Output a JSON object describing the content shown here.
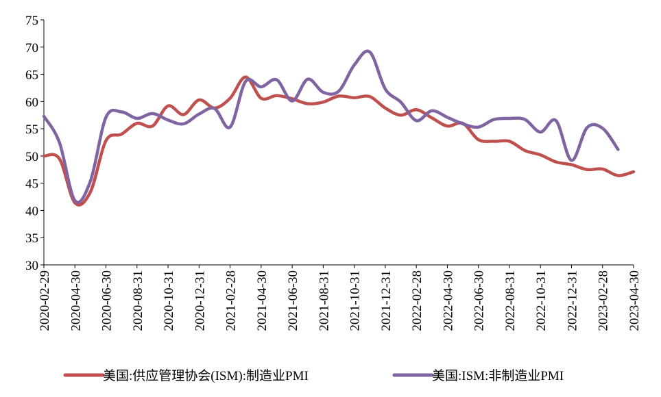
{
  "chart_data": {
    "type": "line",
    "title": "",
    "xlabel": "",
    "ylabel": "",
    "ylim": [
      30,
      75
    ],
    "yticks": [
      30,
      35,
      40,
      45,
      50,
      55,
      60,
      65,
      70,
      75
    ],
    "xtick_labels": [
      "2020-02-29",
      "2020-04-30",
      "2020-06-30",
      "2020-08-31",
      "2020-10-31",
      "2020-12-31",
      "2021-02-28",
      "2021-04-30",
      "2021-06-30",
      "2021-08-31",
      "2021-10-31",
      "2021-12-31",
      "2022-02-28",
      "2022-04-30",
      "2022-06-30",
      "2022-08-31",
      "2022-10-31",
      "2022-12-31",
      "2023-02-28",
      "2023-04-30"
    ],
    "months": [
      "2020-02",
      "2020-03",
      "2020-04",
      "2020-05",
      "2020-06",
      "2020-07",
      "2020-08",
      "2020-09",
      "2020-10",
      "2020-11",
      "2020-12",
      "2021-01",
      "2021-02",
      "2021-03",
      "2021-04",
      "2021-05",
      "2021-06",
      "2021-07",
      "2021-08",
      "2021-09",
      "2021-10",
      "2021-11",
      "2021-12",
      "2022-01",
      "2022-02",
      "2022-03",
      "2022-04",
      "2022-05",
      "2022-06",
      "2022-07",
      "2022-08",
      "2022-09",
      "2022-10",
      "2022-11",
      "2022-12",
      "2023-01",
      "2023-02",
      "2023-03",
      "2023-04"
    ],
    "legend_position": "bottom",
    "series": [
      {
        "name": "美国:供应管理协会(ISM):制造业PMI",
        "color": "#C0504D",
        "values": [
          50.0,
          49.5,
          41.4,
          43.4,
          52.8,
          54.0,
          56.0,
          55.5,
          59.2,
          57.6,
          60.3,
          58.8,
          60.6,
          64.5,
          60.6,
          61.1,
          60.5,
          59.6,
          59.9,
          61.0,
          60.7,
          60.9,
          58.8,
          57.5,
          58.5,
          57.0,
          55.5,
          56.0,
          53.0,
          52.7,
          52.7,
          51.0,
          50.2,
          48.9,
          48.4,
          47.5,
          47.6,
          46.4,
          47.1
        ]
      },
      {
        "name": "美国:ISM:非制造业PMI",
        "color": "#8064A2",
        "values": [
          57.3,
          52.5,
          41.8,
          45.4,
          57.1,
          58.1,
          56.9,
          57.8,
          56.6,
          55.9,
          57.7,
          58.7,
          55.3,
          63.7,
          62.7,
          64.0,
          60.1,
          64.1,
          61.7,
          61.9,
          66.7,
          69.1,
          62.3,
          59.9,
          56.5,
          58.3,
          57.1,
          55.9,
          55.3,
          56.7,
          56.9,
          56.7,
          54.4,
          56.5,
          49.2,
          55.2,
          55.1,
          51.2
        ]
      }
    ]
  }
}
